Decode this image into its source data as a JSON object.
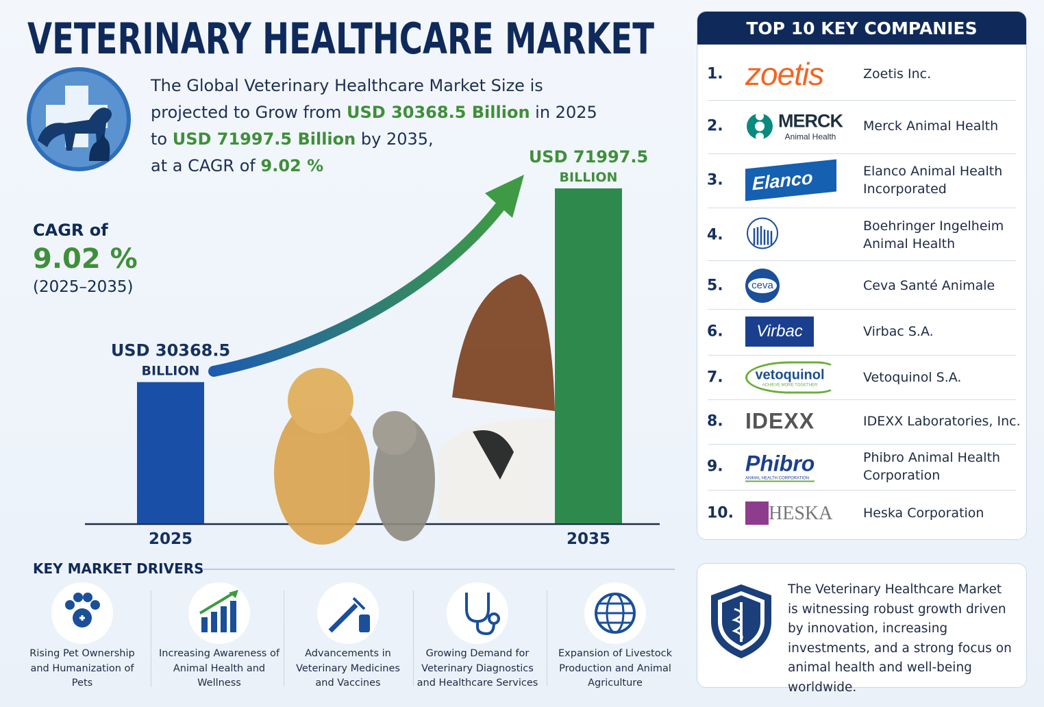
{
  "header": {
    "title": "VETERINARY HEALTHCARE MARKET"
  },
  "intro": [
    "The Global Veterinary Healthcare Market Size is",
    "projected to Grow from",
    "USD 30368.5 Billion",
    "in 2025",
    "to",
    "USD 71997.5 Billion",
    "by 2035,",
    "at a CAGR of",
    "9.02 %"
  ],
  "cagr": {
    "label": "CAGR of",
    "value": "9.02 %",
    "period": "(2025–2035)"
  },
  "chart_data": {
    "type": "bar",
    "categories": [
      "2025",
      "2035"
    ],
    "values": [
      30368.5,
      71997.5
    ],
    "value_labels": [
      "USD 30368.5",
      "USD 71997.5"
    ],
    "unit": "BILLION",
    "colors": [
      "#1a4fa8",
      "#2e8a4c"
    ]
  },
  "companies": {
    "title": "TOP 10 KEY COMPANIES",
    "rows": [
      {
        "rank": "1.",
        "logo": "zoetis",
        "name": "Zoetis Inc."
      },
      {
        "rank": "2.",
        "logo": "MERCK",
        "logo_sub": "Animal Health",
        "name": "Merck Animal Health"
      },
      {
        "rank": "3.",
        "logo": "Elanco",
        "name": "Elanco Animal Health Incorporated"
      },
      {
        "rank": "4.",
        "name": "Boehringer Ingelheim Animal Health"
      },
      {
        "rank": "5.",
        "logo": "ceva",
        "name": "Ceva Santé Animale"
      },
      {
        "rank": "6.",
        "logo": "Virbac",
        "name": "Virbac S.A."
      },
      {
        "rank": "7.",
        "logo": "vetoquinol",
        "logo_sub": "ACHIEVE MORE TOGETHER",
        "name": "Vetoquinol S.A."
      },
      {
        "rank": "8.",
        "logo": "IDEXX",
        "name": "IDEXX Laboratories, Inc."
      },
      {
        "rank": "9.",
        "logo": "Phibro",
        "logo_sub": "ANIMAL HEALTH CORPORATION",
        "name": "Phibro Animal Health Corporation"
      },
      {
        "rank": "10.",
        "logo": "HESKA",
        "name": "Heska Corporation"
      }
    ]
  },
  "drivers": {
    "title": "KEY MARKET DRIVERS",
    "items": [
      "Rising Pet Ownership and Humanization of Pets",
      "Increasing Awareness of Animal Health and Wellness",
      "Advancements in Veterinary Medicines and Vaccines",
      "Growing Demand for Veterinary Diagnostics and Healthcare Services",
      "Expansion of Livestock Production and Animal Agriculture"
    ]
  },
  "summary": "The Veterinary Healthcare Market is witnessing robust growth driven by innovation, increasing investments, and a strong focus on animal health and well-being worldwide."
}
